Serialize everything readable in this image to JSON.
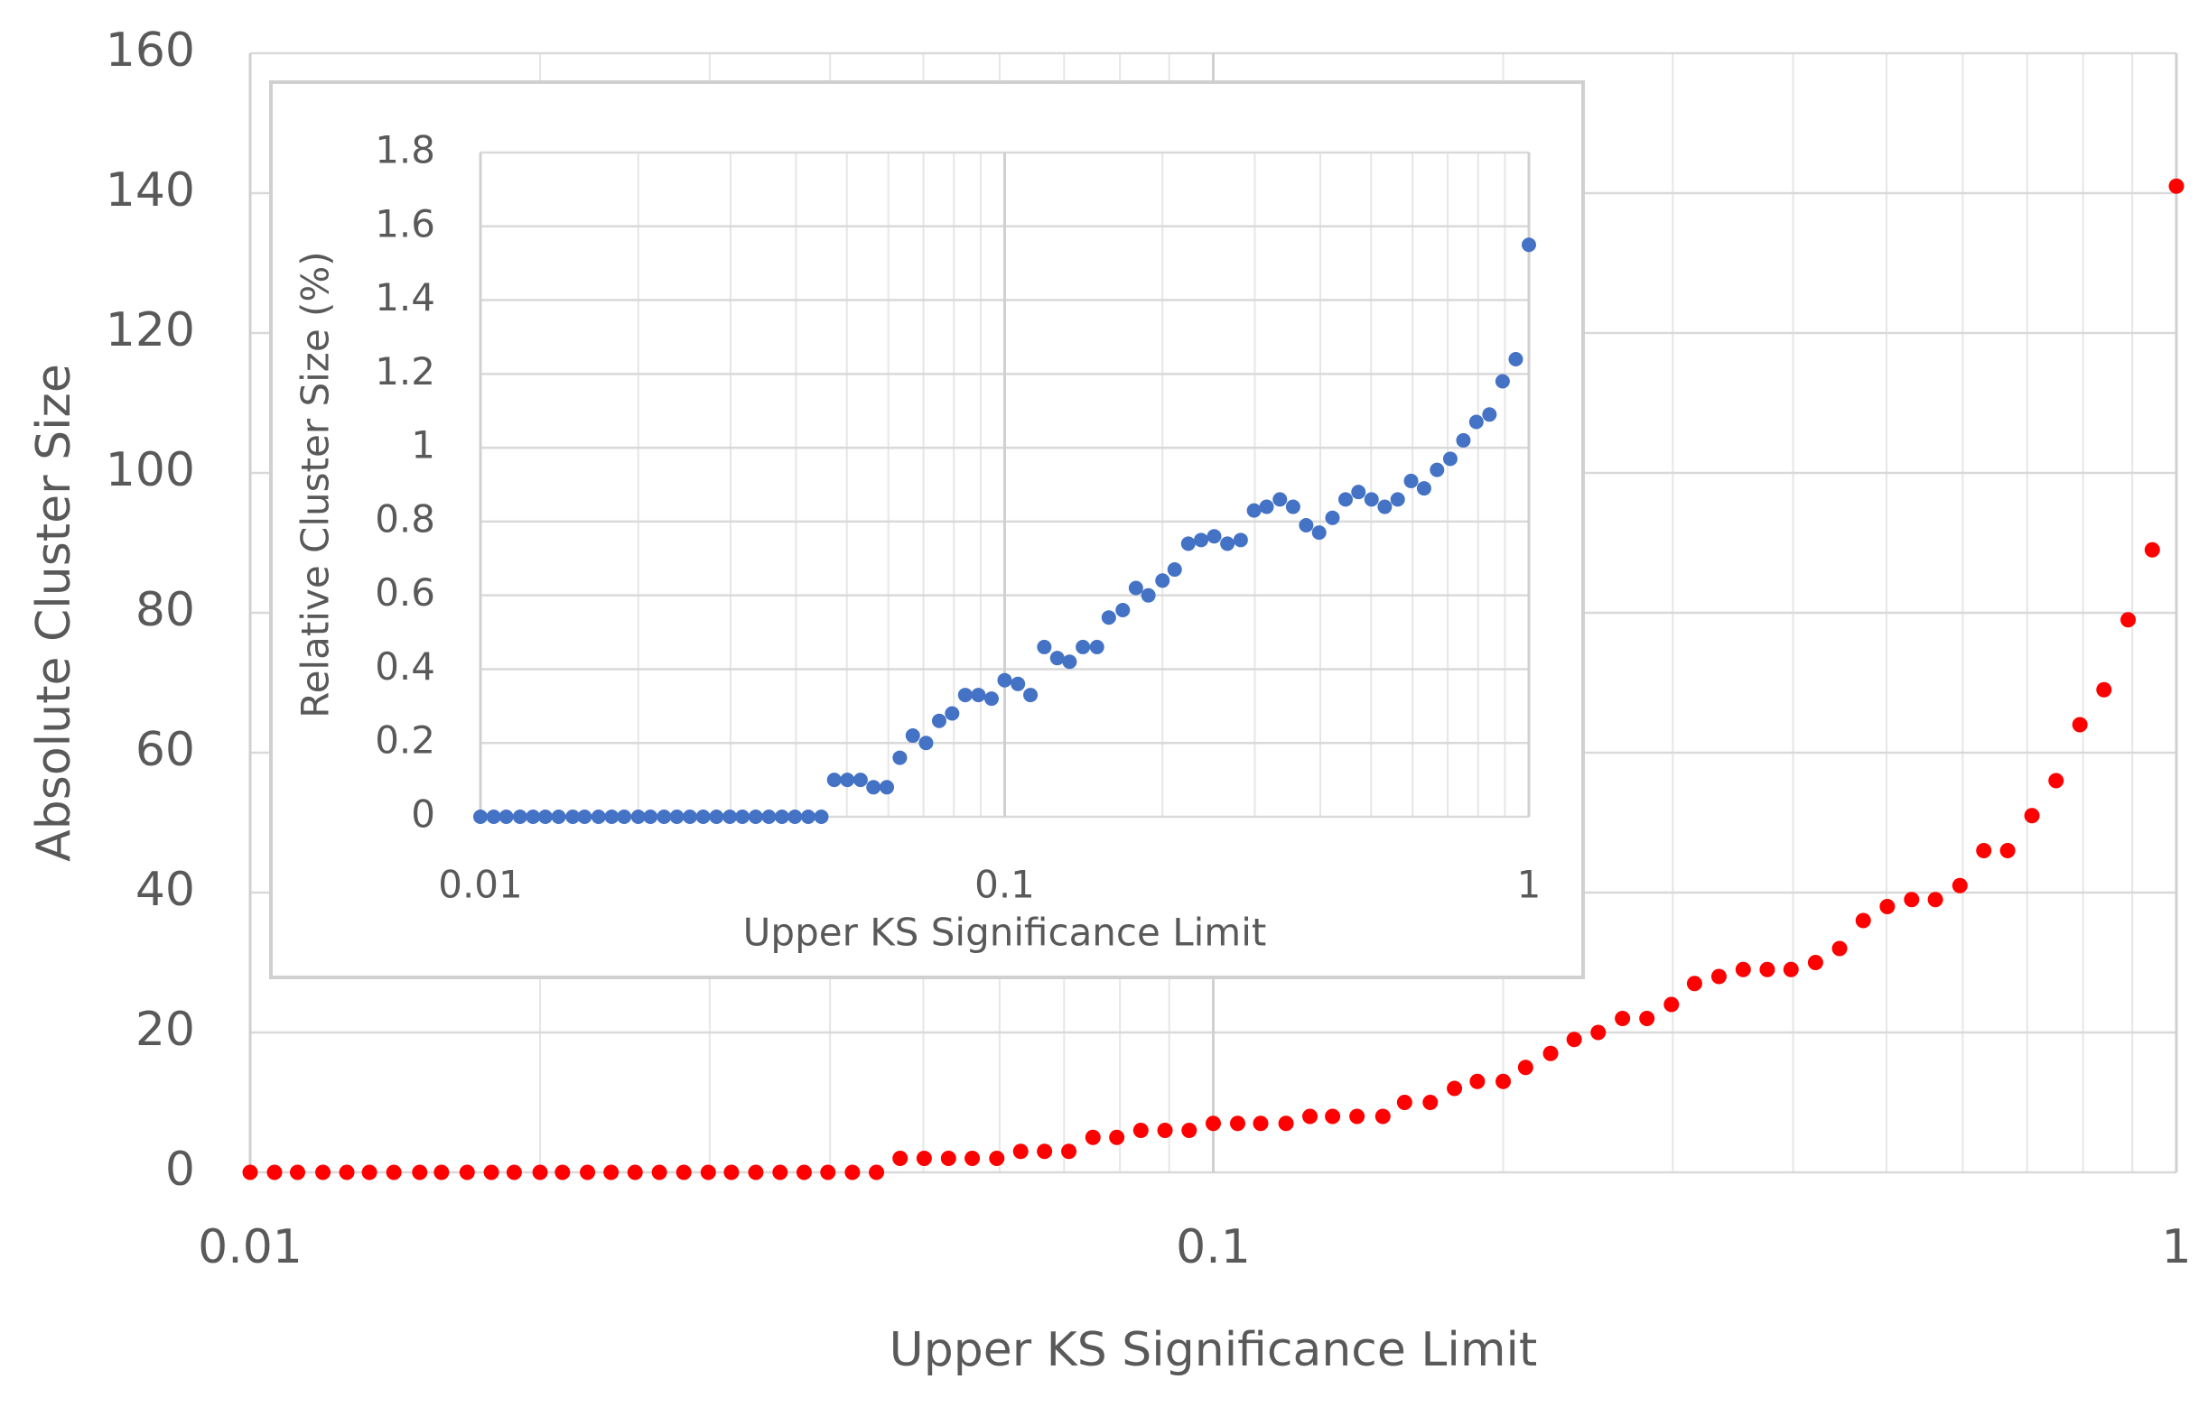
{
  "chart_data": [
    {
      "type": "scatter",
      "x_label": "Upper KS Significance Limit",
      "y_label": "Absolute Cluster Size",
      "xlog": true,
      "grid": true,
      "minor_grid": true,
      "xlim": [
        0.01,
        1
      ],
      "xticks": [
        0.01,
        0.1,
        1
      ],
      "ylim": [
        0,
        160
      ],
      "yticks": [
        0,
        20,
        40,
        60,
        80,
        100,
        120,
        140,
        160
      ],
      "x": [
        0.01,
        0.0106,
        0.0112,
        0.0119,
        0.0126,
        0.0133,
        0.0141,
        0.015,
        0.0158,
        0.0168,
        0.0178,
        0.0188,
        0.02,
        0.0211,
        0.0224,
        0.0237,
        0.0251,
        0.0266,
        0.0282,
        0.0299,
        0.0316,
        0.0335,
        0.0355,
        0.0376,
        0.0398,
        0.0422,
        0.0447,
        0.0473,
        0.0501,
        0.0531,
        0.0562,
        0.0596,
        0.0631,
        0.0668,
        0.0708,
        0.075,
        0.0794,
        0.0841,
        0.0891,
        0.0944,
        0.1,
        0.106,
        0.112,
        0.119,
        0.126,
        0.133,
        0.141,
        0.15,
        0.158,
        0.168,
        0.178,
        0.188,
        0.2,
        0.211,
        0.224,
        0.237,
        0.251,
        0.266,
        0.282,
        0.299,
        0.316,
        0.335,
        0.355,
        0.376,
        0.398,
        0.422,
        0.447,
        0.473,
        0.501,
        0.531,
        0.562,
        0.596,
        0.631,
        0.668,
        0.708,
        0.75,
        0.794,
        0.841,
        0.891,
        0.944,
        1
      ],
      "series": [
        {
          "color": "#ff0000",
          "values": [
            0,
            0,
            0,
            0,
            0,
            0,
            0,
            0,
            0,
            0,
            0,
            0,
            0,
            0,
            0,
            0,
            0,
            0,
            0,
            0,
            0,
            0,
            0,
            0,
            0,
            0,
            0,
            2,
            2,
            2,
            2,
            2,
            3,
            3,
            3,
            5,
            5,
            6,
            6,
            6,
            7,
            7,
            7,
            7,
            8,
            8,
            8,
            8,
            10,
            10,
            12,
            13,
            13,
            15,
            17,
            19,
            20,
            22,
            22,
            24,
            27,
            28,
            29,
            29,
            29,
            30,
            32,
            36,
            38,
            39,
            39,
            41,
            46,
            46,
            51,
            56,
            64,
            69,
            79,
            89,
            141
          ]
        }
      ]
    },
    {
      "type": "scatter",
      "x_label": "Upper KS Significance Limit",
      "y_label": "Relative Cluster Size (%)",
      "xlog": true,
      "grid": true,
      "minor_grid": true,
      "xlim": [
        0.01,
        1
      ],
      "xticks": [
        0.01,
        0.1,
        1
      ],
      "ylim": [
        0,
        1.8
      ],
      "yticks": [
        0,
        0.2,
        0.4,
        0.6,
        0.8,
        1,
        1.2,
        1.4,
        1.6,
        1.8
      ],
      "x": [
        0.01,
        0.0106,
        0.0112,
        0.0119,
        0.0126,
        0.0133,
        0.0141,
        0.015,
        0.0158,
        0.0168,
        0.0178,
        0.0188,
        0.02,
        0.0211,
        0.0224,
        0.0237,
        0.0251,
        0.0266,
        0.0282,
        0.0299,
        0.0316,
        0.0335,
        0.0355,
        0.0376,
        0.0398,
        0.0422,
        0.0447,
        0.0473,
        0.0501,
        0.0531,
        0.0562,
        0.0596,
        0.0631,
        0.0668,
        0.0708,
        0.075,
        0.0794,
        0.0841,
        0.0891,
        0.0944,
        0.1,
        0.106,
        0.112,
        0.119,
        0.126,
        0.133,
        0.141,
        0.15,
        0.158,
        0.168,
        0.178,
        0.188,
        0.2,
        0.211,
        0.224,
        0.237,
        0.251,
        0.266,
        0.282,
        0.299,
        0.316,
        0.335,
        0.355,
        0.376,
        0.398,
        0.422,
        0.447,
        0.473,
        0.501,
        0.531,
        0.562,
        0.596,
        0.631,
        0.668,
        0.708,
        0.75,
        0.794,
        0.841,
        0.891,
        0.944,
        1
      ],
      "series": [
        {
          "color": "#4472c4",
          "values": [
            0,
            0,
            0,
            0,
            0,
            0,
            0,
            0,
            0,
            0,
            0,
            0,
            0,
            0,
            0,
            0,
            0,
            0,
            0,
            0,
            0,
            0,
            0,
            0,
            0,
            0,
            0,
            0.1,
            0.1,
            0.1,
            0.08,
            0.08,
            0.16,
            0.22,
            0.2,
            0.26,
            0.28,
            0.33,
            0.33,
            0.32,
            0.37,
            0.36,
            0.33,
            0.46,
            0.43,
            0.42,
            0.46,
            0.46,
            0.54,
            0.56,
            0.62,
            0.6,
            0.64,
            0.67,
            0.74,
            0.75,
            0.76,
            0.74,
            0.75,
            0.83,
            0.84,
            0.86,
            0.84,
            0.79,
            0.77,
            0.81,
            0.86,
            0.88,
            0.86,
            0.84,
            0.86,
            0.91,
            0.89,
            0.94,
            0.97,
            1.02,
            1.07,
            1.09,
            1.18,
            1.24,
            1.55
          ]
        }
      ]
    }
  ]
}
